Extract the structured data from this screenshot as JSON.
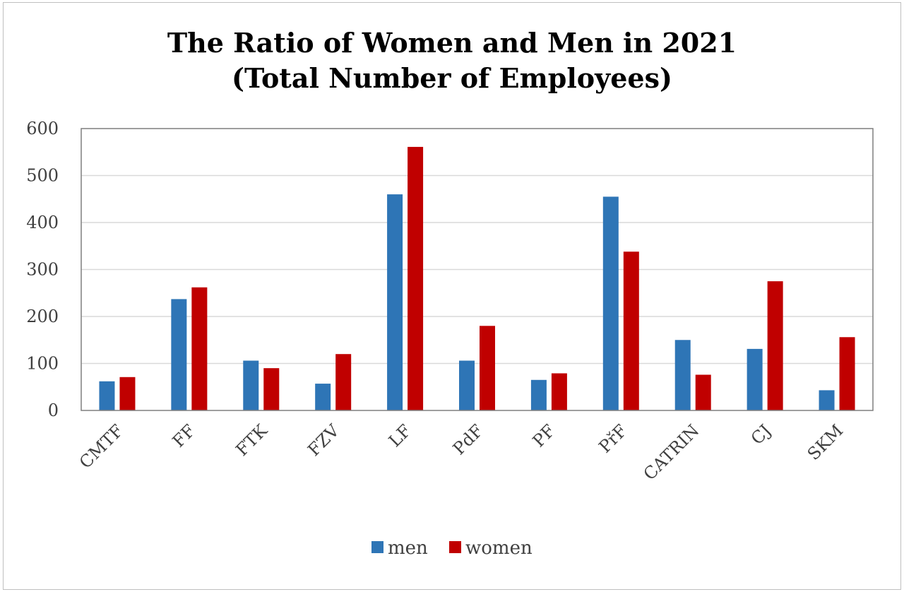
{
  "chart_data": {
    "type": "bar",
    "title_lines": [
      "The Ratio of Women and Men in 2021",
      "(Total Number of Employees)"
    ],
    "categories": [
      "CMTF",
      "FF",
      "FTK",
      "FZV",
      "LF",
      "PdF",
      "PF",
      "PřF",
      "CATRIN",
      "CJ",
      "SKM"
    ],
    "series": [
      {
        "name": "men",
        "color": "#2e75b6",
        "values": [
          62,
          237,
          106,
          57,
          460,
          106,
          65,
          455,
          150,
          131,
          43
        ]
      },
      {
        "name": "women",
        "color": "#c00000",
        "values": [
          71,
          262,
          90,
          120,
          561,
          180,
          79,
          338,
          76,
          275,
          156
        ]
      }
    ],
    "yticks": [
      "0",
      "100",
      "200",
      "300",
      "400",
      "500",
      "600"
    ],
    "ylim": [
      0,
      600
    ],
    "grid": true,
    "legend_position": "bottom",
    "xlabel": "",
    "ylabel": ""
  }
}
